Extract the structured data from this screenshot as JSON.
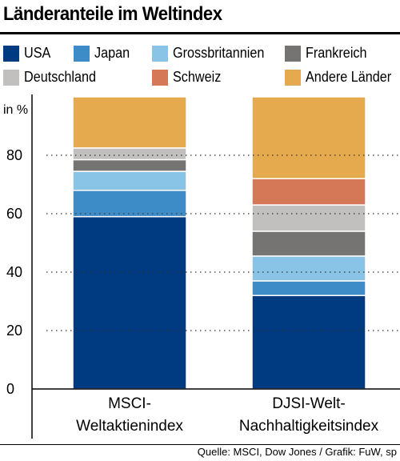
{
  "header": {
    "title": "Länderanteile im Weltindex"
  },
  "source": "Quelle: MSCI, Dow Jones / Grafik: FuW, sp",
  "colors": {
    "USA": "#003a80",
    "Japan": "#3d8cc8",
    "Grossbritannien": "#89c4e6",
    "Frankreich": "#767472",
    "Deutschland": "#c1c0be",
    "Schweiz": "#d47857",
    "Andere Länder": "#e4aa4d"
  },
  "chart_data": {
    "type": "bar",
    "stacked": true,
    "categories": [
      "MSCI-\nWeltaktienindex",
      "DJSI-Welt-\nNachhaltigkeitsindex"
    ],
    "category_lines": [
      [
        "MSCI-",
        "Weltaktienindex"
      ],
      [
        "DJSI-Welt-",
        "Nachhaltigkeitsindex"
      ]
    ],
    "series": [
      {
        "name": "USA",
        "values": [
          59,
          32
        ]
      },
      {
        "name": "Japan",
        "values": [
          9,
          5
        ]
      },
      {
        "name": "Grossbritannien",
        "values": [
          6.5,
          8.5
        ]
      },
      {
        "name": "Frankreich",
        "values": [
          4,
          8.5
        ]
      },
      {
        "name": "Deutschland",
        "values": [
          4,
          9
        ]
      },
      {
        "name": "Schweiz",
        "values": [
          0,
          9
        ]
      },
      {
        "name": "Andere Länder",
        "values": [
          17.5,
          28
        ]
      }
    ],
    "ylabel": "in %",
    "ylim": [
      0,
      100
    ],
    "yticks": [
      0,
      20,
      40,
      60,
      80
    ],
    "grid": "dotted",
    "legend": "top"
  }
}
